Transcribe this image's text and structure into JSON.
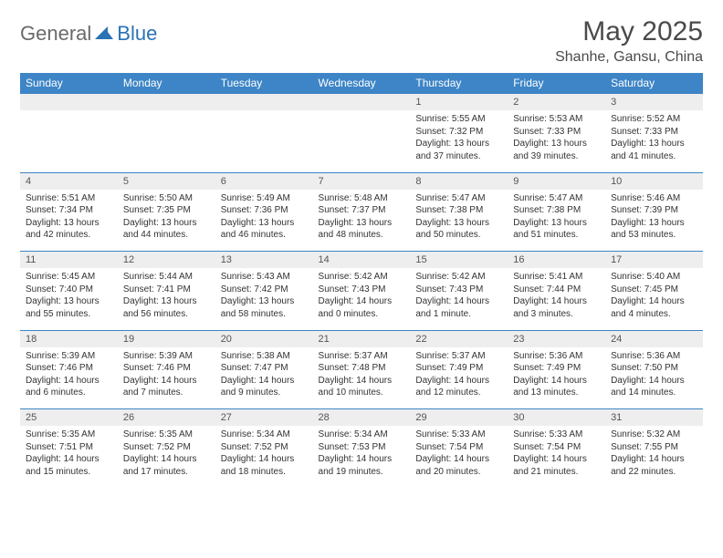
{
  "logo": {
    "general": "General",
    "blue": "Blue"
  },
  "title": "May 2025",
  "location": "Shanhe, Gansu, China",
  "colors": {
    "header_bg": "#3d85c6",
    "header_text": "#ffffff",
    "daynum_bg": "#eeeeee",
    "border": "#3d85c6",
    "logo_gray": "#6a6a6a",
    "logo_blue": "#2a72b5",
    "body_text": "#333333",
    "title_text": "#4a4a4a",
    "background": "#ffffff"
  },
  "days_of_week": [
    "Sunday",
    "Monday",
    "Tuesday",
    "Wednesday",
    "Thursday",
    "Friday",
    "Saturday"
  ],
  "weeks": [
    {
      "nums": [
        "",
        "",
        "",
        "",
        "1",
        "2",
        "3"
      ],
      "cells": [
        {
          "sunrise": "",
          "sunset": "",
          "daylight": ""
        },
        {
          "sunrise": "",
          "sunset": "",
          "daylight": ""
        },
        {
          "sunrise": "",
          "sunset": "",
          "daylight": ""
        },
        {
          "sunrise": "",
          "sunset": "",
          "daylight": ""
        },
        {
          "sunrise": "Sunrise: 5:55 AM",
          "sunset": "Sunset: 7:32 PM",
          "daylight": "Daylight: 13 hours and 37 minutes."
        },
        {
          "sunrise": "Sunrise: 5:53 AM",
          "sunset": "Sunset: 7:33 PM",
          "daylight": "Daylight: 13 hours and 39 minutes."
        },
        {
          "sunrise": "Sunrise: 5:52 AM",
          "sunset": "Sunset: 7:33 PM",
          "daylight": "Daylight: 13 hours and 41 minutes."
        }
      ]
    },
    {
      "nums": [
        "4",
        "5",
        "6",
        "7",
        "8",
        "9",
        "10"
      ],
      "cells": [
        {
          "sunrise": "Sunrise: 5:51 AM",
          "sunset": "Sunset: 7:34 PM",
          "daylight": "Daylight: 13 hours and 42 minutes."
        },
        {
          "sunrise": "Sunrise: 5:50 AM",
          "sunset": "Sunset: 7:35 PM",
          "daylight": "Daylight: 13 hours and 44 minutes."
        },
        {
          "sunrise": "Sunrise: 5:49 AM",
          "sunset": "Sunset: 7:36 PM",
          "daylight": "Daylight: 13 hours and 46 minutes."
        },
        {
          "sunrise": "Sunrise: 5:48 AM",
          "sunset": "Sunset: 7:37 PM",
          "daylight": "Daylight: 13 hours and 48 minutes."
        },
        {
          "sunrise": "Sunrise: 5:47 AM",
          "sunset": "Sunset: 7:38 PM",
          "daylight": "Daylight: 13 hours and 50 minutes."
        },
        {
          "sunrise": "Sunrise: 5:47 AM",
          "sunset": "Sunset: 7:38 PM",
          "daylight": "Daylight: 13 hours and 51 minutes."
        },
        {
          "sunrise": "Sunrise: 5:46 AM",
          "sunset": "Sunset: 7:39 PM",
          "daylight": "Daylight: 13 hours and 53 minutes."
        }
      ]
    },
    {
      "nums": [
        "11",
        "12",
        "13",
        "14",
        "15",
        "16",
        "17"
      ],
      "cells": [
        {
          "sunrise": "Sunrise: 5:45 AM",
          "sunset": "Sunset: 7:40 PM",
          "daylight": "Daylight: 13 hours and 55 minutes."
        },
        {
          "sunrise": "Sunrise: 5:44 AM",
          "sunset": "Sunset: 7:41 PM",
          "daylight": "Daylight: 13 hours and 56 minutes."
        },
        {
          "sunrise": "Sunrise: 5:43 AM",
          "sunset": "Sunset: 7:42 PM",
          "daylight": "Daylight: 13 hours and 58 minutes."
        },
        {
          "sunrise": "Sunrise: 5:42 AM",
          "sunset": "Sunset: 7:43 PM",
          "daylight": "Daylight: 14 hours and 0 minutes."
        },
        {
          "sunrise": "Sunrise: 5:42 AM",
          "sunset": "Sunset: 7:43 PM",
          "daylight": "Daylight: 14 hours and 1 minute."
        },
        {
          "sunrise": "Sunrise: 5:41 AM",
          "sunset": "Sunset: 7:44 PM",
          "daylight": "Daylight: 14 hours and 3 minutes."
        },
        {
          "sunrise": "Sunrise: 5:40 AM",
          "sunset": "Sunset: 7:45 PM",
          "daylight": "Daylight: 14 hours and 4 minutes."
        }
      ]
    },
    {
      "nums": [
        "18",
        "19",
        "20",
        "21",
        "22",
        "23",
        "24"
      ],
      "cells": [
        {
          "sunrise": "Sunrise: 5:39 AM",
          "sunset": "Sunset: 7:46 PM",
          "daylight": "Daylight: 14 hours and 6 minutes."
        },
        {
          "sunrise": "Sunrise: 5:39 AM",
          "sunset": "Sunset: 7:46 PM",
          "daylight": "Daylight: 14 hours and 7 minutes."
        },
        {
          "sunrise": "Sunrise: 5:38 AM",
          "sunset": "Sunset: 7:47 PM",
          "daylight": "Daylight: 14 hours and 9 minutes."
        },
        {
          "sunrise": "Sunrise: 5:37 AM",
          "sunset": "Sunset: 7:48 PM",
          "daylight": "Daylight: 14 hours and 10 minutes."
        },
        {
          "sunrise": "Sunrise: 5:37 AM",
          "sunset": "Sunset: 7:49 PM",
          "daylight": "Daylight: 14 hours and 12 minutes."
        },
        {
          "sunrise": "Sunrise: 5:36 AM",
          "sunset": "Sunset: 7:49 PM",
          "daylight": "Daylight: 14 hours and 13 minutes."
        },
        {
          "sunrise": "Sunrise: 5:36 AM",
          "sunset": "Sunset: 7:50 PM",
          "daylight": "Daylight: 14 hours and 14 minutes."
        }
      ]
    },
    {
      "nums": [
        "25",
        "26",
        "27",
        "28",
        "29",
        "30",
        "31"
      ],
      "cells": [
        {
          "sunrise": "Sunrise: 5:35 AM",
          "sunset": "Sunset: 7:51 PM",
          "daylight": "Daylight: 14 hours and 15 minutes."
        },
        {
          "sunrise": "Sunrise: 5:35 AM",
          "sunset": "Sunset: 7:52 PM",
          "daylight": "Daylight: 14 hours and 17 minutes."
        },
        {
          "sunrise": "Sunrise: 5:34 AM",
          "sunset": "Sunset: 7:52 PM",
          "daylight": "Daylight: 14 hours and 18 minutes."
        },
        {
          "sunrise": "Sunrise: 5:34 AM",
          "sunset": "Sunset: 7:53 PM",
          "daylight": "Daylight: 14 hours and 19 minutes."
        },
        {
          "sunrise": "Sunrise: 5:33 AM",
          "sunset": "Sunset: 7:54 PM",
          "daylight": "Daylight: 14 hours and 20 minutes."
        },
        {
          "sunrise": "Sunrise: 5:33 AM",
          "sunset": "Sunset: 7:54 PM",
          "daylight": "Daylight: 14 hours and 21 minutes."
        },
        {
          "sunrise": "Sunrise: 5:32 AM",
          "sunset": "Sunset: 7:55 PM",
          "daylight": "Daylight: 14 hours and 22 minutes."
        }
      ]
    }
  ]
}
